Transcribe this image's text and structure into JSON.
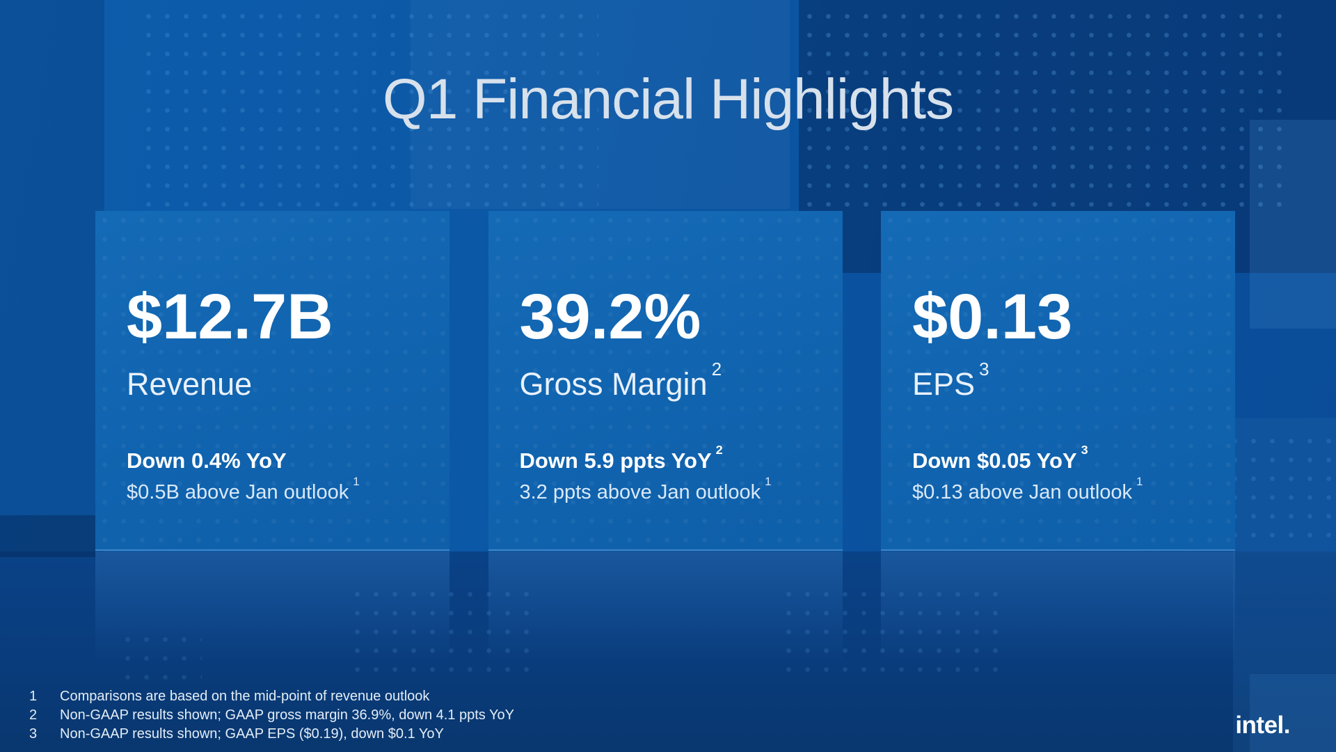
{
  "slide": {
    "title": "Q1 Financial Highlights",
    "brand": "intel."
  },
  "colors": {
    "background_blue": "#0b57a5",
    "background_dark_blue": "#093d7e",
    "card_blue": "#1266b2",
    "title_color": "#d7e1ec",
    "value_color": "#ffffff",
    "subtext_color": "#d9e9f8",
    "dot_color": "#5aa0e1"
  },
  "cards": [
    {
      "value": "$12.7B",
      "label": "Revenue",
      "label_sup": "",
      "delta": "Down 0.4% YoY",
      "delta_sup": "",
      "outlook": "$0.5B above Jan outlook",
      "outlook_sup": "1"
    },
    {
      "value": "39.2%",
      "label": "Gross Margin",
      "label_sup": "2",
      "delta": "Down 5.9 ppts YoY",
      "delta_sup": "2",
      "outlook": "3.2 ppts above Jan outlook",
      "outlook_sup": "1"
    },
    {
      "value": "$0.13",
      "label": "EPS",
      "label_sup": "3",
      "delta": "Down $0.05 YoY",
      "delta_sup": "3",
      "outlook": "$0.13 above Jan outlook",
      "outlook_sup": "1"
    }
  ],
  "footnotes": [
    {
      "num": "1",
      "text": "Comparisons are based on the mid-point of revenue outlook"
    },
    {
      "num": "2",
      "text": "Non-GAAP results shown; GAAP gross margin 36.9%, down 4.1 ppts YoY"
    },
    {
      "num": "3",
      "text": "Non-GAAP results shown; GAAP EPS ($0.19), down $0.1 YoY"
    }
  ]
}
